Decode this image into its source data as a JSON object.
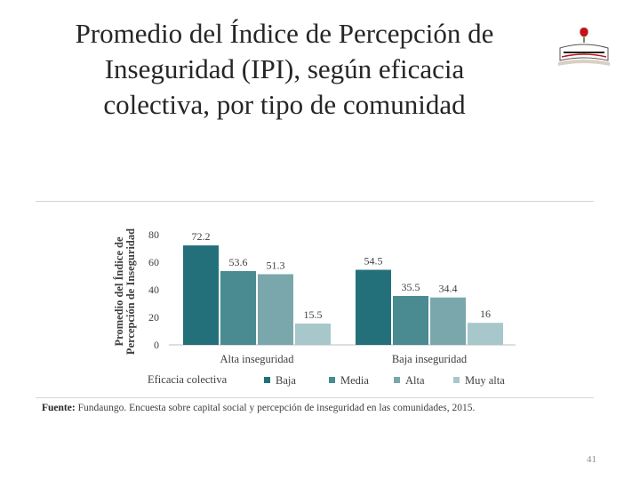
{
  "slide": {
    "title_lines": [
      "Promedio del Índice de Percepción de",
      "Inseguridad (IPI), según eficacia",
      "colectiva, por tipo de comunidad"
    ],
    "source_label": "Fuente:",
    "source_text": " Fundaungo. Encuesta sobre capital social y percepción de inseguridad en las comunidades, 2015.",
    "page_number": "41"
  },
  "chart_data": {
    "type": "bar",
    "categories": [
      "Alta inseguridad",
      "Baja inseguridad"
    ],
    "series": [
      {
        "name": "Baja",
        "values": [
          72.2,
          54.5
        ],
        "color": "#23707a"
      },
      {
        "name": "Media",
        "values": [
          53.6,
          35.5
        ],
        "color": "#4a8a91"
      },
      {
        "name": "Alta",
        "values": [
          51.3,
          34.4
        ],
        "color": "#7aa7ac"
      },
      {
        "name": "Muy alta",
        "values": [
          15.5,
          16
        ],
        "color": "#a8c7cb"
      }
    ],
    "value_labels": [
      [
        "72.2",
        "54.5"
      ],
      [
        "53.6",
        "35.5"
      ],
      [
        "51.3",
        "34.4"
      ],
      [
        "15.5",
        "16"
      ]
    ],
    "ylabel_lines": [
      "Promedio del Índice de",
      "Percepción de Inseguridad"
    ],
    "ylim": [
      0,
      80
    ],
    "yticks": [
      0,
      20,
      40,
      60,
      80
    ],
    "legend_title": "Eficacia colectiva",
    "legend_position": "bottom",
    "grid": false
  }
}
